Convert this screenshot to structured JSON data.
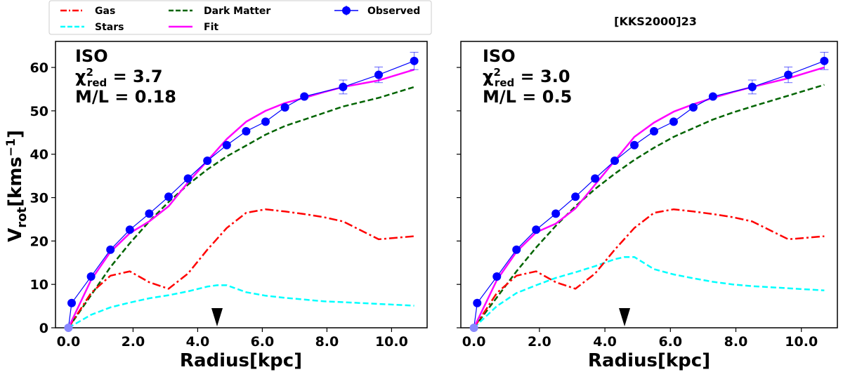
{
  "chart_data": {
    "type": "line",
    "title": "[KKS2000]23",
    "xlabel": "Radius[kpc]",
    "ylabel_main": "V",
    "ylabel_sub": "rot",
    "ylabel_unit": "[kms",
    "ylabel_exp": "−1",
    "ylabel_close": "]",
    "xlim": [
      -0.4,
      11.1
    ],
    "ylim": [
      0,
      66
    ],
    "xticks": [
      0,
      2,
      4,
      6,
      8,
      10
    ],
    "xtick_labels": [
      "0.0",
      "2.0",
      "4.0",
      "6.0",
      "8.0",
      "10.0"
    ],
    "yticks": [
      0,
      10,
      20,
      30,
      40,
      50,
      60
    ],
    "ytick_labels": [
      "0",
      "10",
      "20",
      "30",
      "40",
      "50",
      "60"
    ],
    "legend": [
      {
        "name": "Gas",
        "color": "#ff0000",
        "style": "dashdot"
      },
      {
        "name": "Stars",
        "color": "#00ffff",
        "style": "dashed"
      },
      {
        "name": "Dark Matter",
        "color": "#006400",
        "style": "dashed"
      },
      {
        "name": "Fit",
        "color": "#ff00ff",
        "style": "solid"
      },
      {
        "name": "Observed",
        "color": "#0000ff",
        "style": "errorbar"
      }
    ],
    "panels": [
      {
        "model": "ISO",
        "chi_label": "χ",
        "chi_sup": "2",
        "chi_sub": "red",
        "chi_value": " = 3.7",
        "ml_text": "M/L = 0.18",
        "marker_x": 4.6,
        "series": {
          "gas": {
            "x": [
              0.0,
              0.7,
              1.3,
              1.9,
              2.5,
              3.1,
              3.7,
              4.3,
              4.9,
              5.5,
              6.1,
              6.7,
              7.3,
              7.9,
              8.5,
              9.6,
              10.7
            ],
            "y": [
              0.0,
              8.0,
              12.0,
              13.0,
              10.5,
              9.0,
              12.5,
              18.0,
              23.0,
              26.5,
              27.3,
              26.8,
              26.2,
              25.5,
              24.5,
              20.4,
              21.1
            ]
          },
          "stars": {
            "x": [
              0.0,
              0.7,
              1.3,
              1.9,
              2.5,
              3.1,
              3.7,
              4.3,
              4.6,
              4.9,
              5.5,
              6.1,
              6.7,
              7.3,
              7.9,
              8.5,
              9.6,
              10.7
            ],
            "y": [
              0.0,
              3.0,
              4.7,
              5.8,
              6.8,
              7.5,
              8.4,
              9.5,
              9.8,
              9.8,
              8.2,
              7.4,
              6.9,
              6.5,
              6.1,
              5.9,
              5.5,
              5.1
            ]
          },
          "dark": {
            "x": [
              0.0,
              0.7,
              1.3,
              1.9,
              2.5,
              3.1,
              3.7,
              4.3,
              4.9,
              5.5,
              6.1,
              6.7,
              7.3,
              7.9,
              8.5,
              9.6,
              10.7
            ],
            "y": [
              0.0,
              7.5,
              14.0,
              19.5,
              24.5,
              29.0,
              33.0,
              36.5,
              39.5,
              42.0,
              44.5,
              46.5,
              48.0,
              49.5,
              51.0,
              53.0,
              55.5
            ]
          },
          "fit": {
            "x": [
              0.0,
              0.7,
              1.3,
              1.9,
              2.5,
              3.1,
              3.7,
              4.3,
              4.9,
              5.5,
              6.1,
              6.7,
              7.3,
              7.9,
              8.5,
              9.6,
              10.7
            ],
            "y": [
              0.0,
              11.0,
              17.5,
              21.8,
              24.5,
              28.0,
              33.5,
              38.5,
              43.5,
              47.5,
              50.0,
              51.8,
              53.0,
              54.3,
              55.5,
              57.0,
              59.5
            ]
          }
        }
      },
      {
        "model": "ISO",
        "chi_label": "χ",
        "chi_sup": "2",
        "chi_sub": "red",
        "chi_value": " = 3.0",
        "ml_text": "M/L = 0.5",
        "marker_x": 4.6,
        "series": {
          "gas": {
            "x": [
              0.0,
              0.7,
              1.3,
              1.9,
              2.5,
              3.1,
              3.7,
              4.3,
              4.9,
              5.5,
              6.1,
              6.7,
              7.3,
              7.9,
              8.5,
              9.6,
              10.7
            ],
            "y": [
              0.0,
              8.0,
              12.0,
              13.0,
              10.5,
              9.0,
              12.5,
              18.0,
              23.0,
              26.5,
              27.3,
              26.8,
              26.2,
              25.5,
              24.5,
              20.4,
              21.1
            ]
          },
          "stars": {
            "x": [
              0.0,
              0.7,
              1.3,
              1.9,
              2.5,
              3.1,
              3.7,
              4.3,
              4.6,
              4.9,
              5.5,
              6.1,
              6.7,
              7.3,
              7.9,
              8.5,
              9.6,
              10.7
            ],
            "y": [
              0.0,
              5.0,
              8.0,
              9.8,
              11.5,
              12.8,
              14.2,
              15.8,
              16.3,
              16.3,
              13.5,
              12.3,
              11.4,
              10.6,
              10.0,
              9.6,
              9.1,
              8.6
            ]
          },
          "dark": {
            "x": [
              0.0,
              0.7,
              1.3,
              1.9,
              2.5,
              3.1,
              3.7,
              4.3,
              4.9,
              5.5,
              6.1,
              6.7,
              7.3,
              7.9,
              8.5,
              9.6,
              10.7
            ],
            "y": [
              0.0,
              7.0,
              13.0,
              18.5,
              23.5,
              28.0,
              32.0,
              35.5,
              38.7,
              41.5,
              44.0,
              46.0,
              48.0,
              49.6,
              51.0,
              53.5,
              56.0
            ]
          },
          "fit": {
            "x": [
              0.0,
              0.7,
              1.3,
              1.9,
              2.5,
              3.1,
              3.7,
              4.3,
              4.9,
              5.5,
              6.1,
              6.7,
              7.3,
              7.9,
              8.5,
              9.6,
              10.7
            ],
            "y": [
              0.0,
              11.0,
              17.5,
              22.0,
              24.0,
              27.5,
              33.0,
              38.5,
              44.0,
              47.3,
              49.8,
              51.5,
              53.0,
              54.3,
              55.5,
              57.5,
              60.0
            ]
          }
        }
      }
    ],
    "observed": {
      "x": [
        0.0,
        0.1,
        0.7,
        1.3,
        1.9,
        2.5,
        3.1,
        3.7,
        4.3,
        4.9,
        5.5,
        6.1,
        6.7,
        7.3,
        8.5,
        9.6,
        10.7
      ],
      "y": [
        0.0,
        5.7,
        11.8,
        18.0,
        22.6,
        26.3,
        30.2,
        34.4,
        38.5,
        42.1,
        45.3,
        47.5,
        50.8,
        53.3,
        55.5,
        58.3,
        61.5
      ],
      "err": [
        0,
        0,
        0,
        0,
        0,
        0,
        0,
        0,
        0,
        0,
        0,
        0,
        0,
        0,
        1.6,
        1.8,
        2.0
      ]
    }
  }
}
